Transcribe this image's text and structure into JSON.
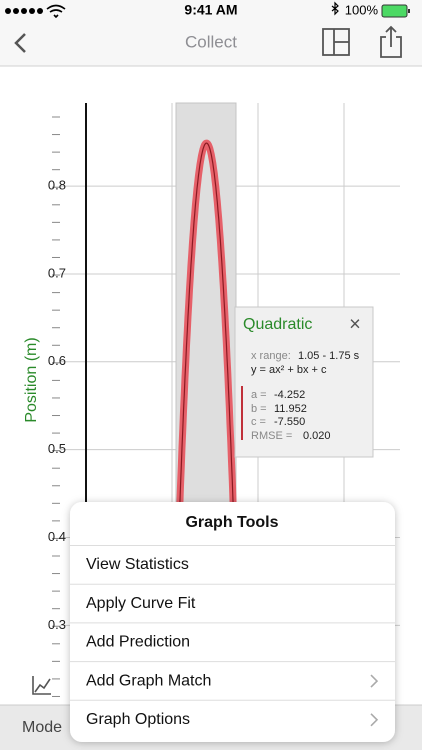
{
  "status_bar": {
    "time": "9:41 AM",
    "battery": "100%"
  },
  "nav_bar": {
    "title": "Collect"
  },
  "graph": {
    "y_label": "Position (m)",
    "ylim": [
      0.215,
      0.898
    ],
    "yticks": [
      0.3,
      0.4,
      0.5,
      0.6,
      0.7,
      0.8
    ],
    "xlim": [
      0,
      3.92
    ]
  },
  "fit_box": {
    "title": "Quadratic",
    "close": "×",
    "x_range_label": "x range:",
    "x_range": "1.05 - 1.75 s",
    "equation": "y = ax² + bx + c",
    "a": {
      "label": "a =",
      "value": "-4.252"
    },
    "b": {
      "label": "b =",
      "value": "11.952"
    },
    "c": {
      "label": "c =",
      "value": "-7.550"
    },
    "rmse": {
      "label": "RMSE =",
      "value": "0.020"
    }
  },
  "toolbar": {
    "mode": "Mode"
  },
  "menu": {
    "title": "Graph Tools",
    "items": [
      "View Statistics",
      "Apply Curve Fit",
      "Add Prediction",
      "Add Graph Match",
      "Graph Options"
    ]
  }
}
